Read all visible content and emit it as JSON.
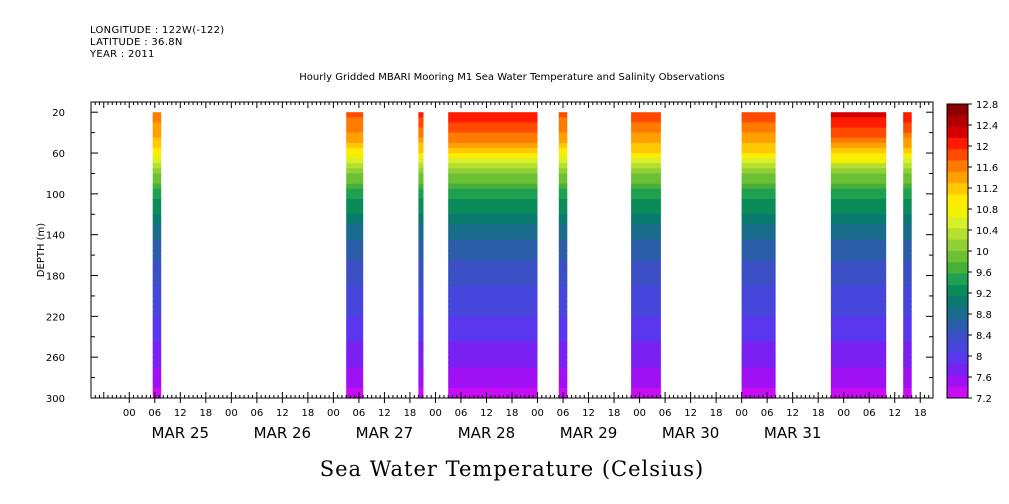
{
  "header": {
    "longitude": "LONGITUDE : 122W(-122)",
    "latitude": "LATITUDE : 36.8N",
    "year": "YEAR : 2011",
    "title": "Hourly Gridded MBARI Mooring M1 Sea Water Temperature and Salinity Observations"
  },
  "chart_data": {
    "type": "heatmap",
    "title": "Hourly Gridded MBARI Mooring M1 Sea Water Temperature and Salinity Observations",
    "xlabel": "Sea Water Temperature (Celsius)",
    "ylabel": "DEPTH (m)",
    "y_axis_inverted": true,
    "ylim": [
      300,
      10
    ],
    "y_ticks": [
      20,
      60,
      100,
      140,
      180,
      220,
      260,
      300
    ],
    "x_hour_ticks": [
      "00",
      "06",
      "12",
      "18",
      "00",
      "06",
      "12",
      "18",
      "00",
      "06",
      "12",
      "18",
      "00",
      "06",
      "12",
      "18",
      "00",
      "06",
      "12",
      "18",
      "00",
      "06",
      "12",
      "18",
      "00",
      "06",
      "12",
      "18",
      "00",
      "06",
      "12",
      "18"
    ],
    "x_day_labels": [
      "MAR 25",
      "MAR 26",
      "MAR 27",
      "MAR 28",
      "MAR 29",
      "MAR 30",
      "MAR 31"
    ],
    "grid": false,
    "colorbar": {
      "levels": [
        "12.8",
        "12.4",
        "12",
        "11.6",
        "11.2",
        "10.8",
        "10.4",
        "10",
        "9.6",
        "9.2",
        "8.8",
        "8.4",
        "8",
        "7.6",
        "7.2"
      ],
      "colors": [
        "#8b0000",
        "#b00000",
        "#d40000",
        "#ff1a00",
        "#ff4a00",
        "#ff7b00",
        "#ff9f00",
        "#ffc800",
        "#ffea00",
        "#f2f200",
        "#d6f02a",
        "#b5e030",
        "#90d035",
        "#6cc034",
        "#45b03a",
        "#1fa050",
        "#0a8c5a",
        "#0a7a70",
        "#1a6c8c",
        "#2a5ea8",
        "#3a50c4",
        "#4646dc",
        "#5a36ee",
        "#7a20f2",
        "#a010f4",
        "#c80cf4"
      ],
      "placement": "right"
    },
    "time_blocks_hours_since_Mar25_00": [
      {
        "start": 5.5,
        "end": 7.5,
        "surface_temp": 11.6
      },
      {
        "start": 51,
        "end": 55,
        "surface_temp": 11.8
      },
      {
        "start": 68,
        "end": 69.2,
        "surface_temp": 12.0
      },
      {
        "start": 75,
        "end": 96,
        "surface_temp": 12.2
      },
      {
        "start": 101,
        "end": 103,
        "surface_temp": 11.8
      },
      {
        "start": 118,
        "end": 125,
        "surface_temp": 11.9
      },
      {
        "start": 144,
        "end": 152,
        "surface_temp": 11.9
      },
      {
        "start": 165,
        "end": 178,
        "surface_temp": 12.3
      },
      {
        "start": 182,
        "end": 184,
        "surface_temp": 12.1
      }
    ],
    "profile_depths": [
      20,
      40,
      60,
      70,
      80,
      100,
      120,
      140,
      160,
      180,
      200,
      220,
      240,
      260,
      280,
      300
    ],
    "profile_temps": [
      11.8,
      11.5,
      11.0,
      10.4,
      10.0,
      9.5,
      9.1,
      8.8,
      8.55,
      8.35,
      8.2,
      8.05,
      7.9,
      7.75,
      7.55,
      7.3
    ]
  }
}
